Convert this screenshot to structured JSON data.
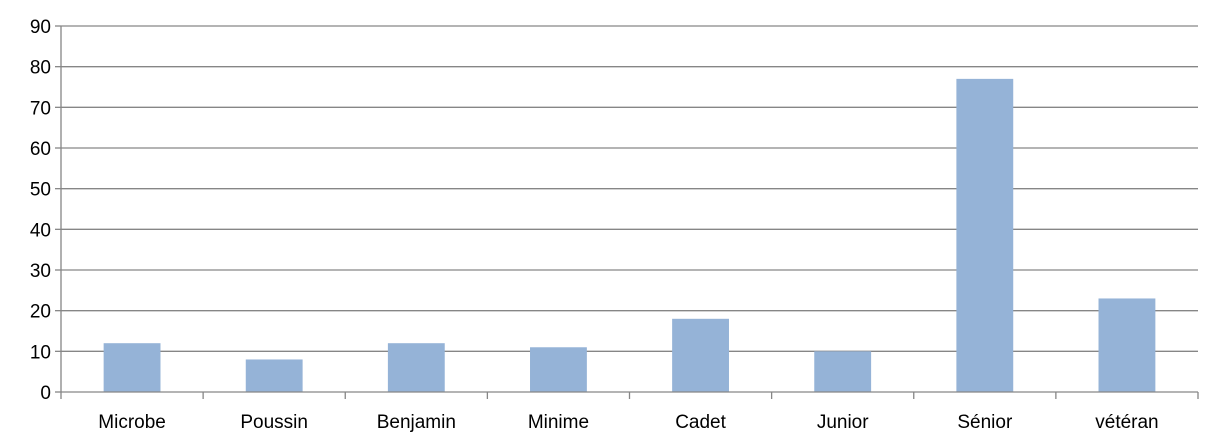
{
  "chart_data": {
    "type": "bar",
    "categories": [
      "Microbe",
      "Poussin",
      "Benjamin",
      "Minime",
      "Cadet",
      "Junior",
      "Sénior",
      "vétéran"
    ],
    "series": [
      {
        "values": [
          12,
          8,
          12,
          11,
          18,
          10,
          77,
          23
        ],
        "color": "#95b3d7"
      }
    ],
    "ylim": [
      0,
      90
    ],
    "yticks": [
      0,
      10,
      20,
      30,
      40,
      50,
      60,
      70,
      80,
      90
    ],
    "title": "",
    "xlabel": "",
    "ylabel": "",
    "grid": true,
    "gridline_color": "#868686",
    "axis_color": "#868686"
  }
}
